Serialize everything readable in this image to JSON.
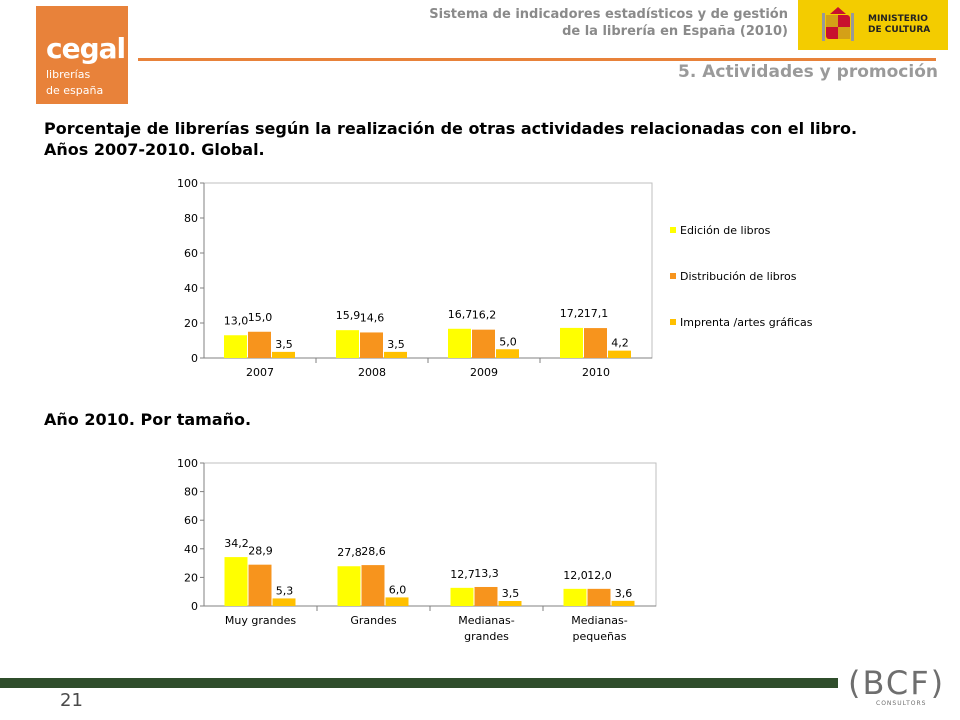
{
  "header": {
    "title_line1": "Sistema de indicadores estadísticos y de gestión",
    "title_line2": "de la librería en España (2010)",
    "section": "5. Actividades y promoción"
  },
  "logo": {
    "name": "cegal",
    "line1": "librerías",
    "line2": "de españa"
  },
  "ministry": {
    "line1": "MINISTERIO",
    "line2": "DE CULTURA"
  },
  "main_title": {
    "line1": "Porcentaje de librerías según la realización de otras actividades relacionadas con el libro.",
    "line2": "Años 2007-2010. Global."
  },
  "title2": "Año 2010. Por tamaño.",
  "page_number": "21",
  "footer": {
    "brand": "(BCF)",
    "sub": "CONSULTORS"
  },
  "colors": {
    "s1": "#ffff00",
    "s2": "#f7941d",
    "s3": "#ffc000",
    "accent": "#e8823a",
    "footer": "#2f4d2b"
  },
  "chart_data": [
    {
      "type": "bar",
      "categories": [
        "2007",
        "2008",
        "2009",
        "2010"
      ],
      "series": [
        {
          "name": "Edición de libros",
          "values": [
            13.0,
            15.9,
            16.7,
            17.2
          ],
          "labels": [
            "13,0",
            "15,9",
            "16,7",
            "17,2"
          ]
        },
        {
          "name": "Distribución de libros",
          "values": [
            15.0,
            14.6,
            16.2,
            17.1
          ],
          "labels": [
            "15,0",
            "14,6",
            "16,2",
            "17,1"
          ]
        },
        {
          "name": "Imprenta /artes gráficas",
          "values": [
            3.5,
            3.5,
            5.0,
            4.2
          ],
          "labels": [
            "3,5",
            "3,5",
            "5,0",
            "4,2"
          ]
        }
      ],
      "yticks": [
        "0",
        "20",
        "40",
        "60",
        "80",
        "100"
      ],
      "ylim": [
        0,
        100
      ],
      "legend": "right"
    },
    {
      "type": "bar",
      "categories": [
        "Muy grandes",
        "Grandes",
        "Medianas-grandes",
        "Medianas-pequeñas"
      ],
      "category_lines": [
        [
          "Muy grandes"
        ],
        [
          "Grandes"
        ],
        [
          "Medianas-",
          "grandes"
        ],
        [
          "Medianas-",
          "pequeñas"
        ]
      ],
      "series": [
        {
          "values": [
            34.2,
            27.8,
            12.7,
            12.0
          ],
          "labels": [
            "34,2",
            "27,8",
            "12,7",
            "12,0"
          ]
        },
        {
          "values": [
            28.9,
            28.6,
            13.3,
            12.0
          ],
          "labels": [
            "28,9",
            "28,6",
            "13,3",
            "12,0"
          ]
        },
        {
          "values": [
            5.3,
            6.0,
            3.5,
            3.6
          ],
          "labels": [
            "5,3",
            "6,0",
            "3,5",
            "3,6"
          ]
        }
      ],
      "yticks": [
        "0",
        "20",
        "40",
        "60",
        "80",
        "100"
      ],
      "ylim": [
        0,
        100
      ]
    }
  ]
}
